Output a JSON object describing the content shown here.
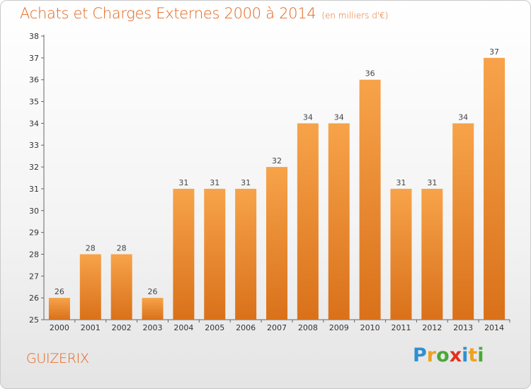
{
  "title": "Achats et Charges Externes 2000 à 2014",
  "unit": "(en milliers d'€)",
  "commune": "GUIZERIX",
  "brand": {
    "text": "Proxiti",
    "letters": [
      {
        "ch": "P",
        "color": "#2f8fd0"
      },
      {
        "ch": "r",
        "color": "#f0a020"
      },
      {
        "ch": "o",
        "color": "#4aa838"
      },
      {
        "ch": "x",
        "color": "#e2301e"
      },
      {
        "ch": "i",
        "color": "#2f8fd0"
      },
      {
        "ch": "t",
        "color": "#f0a020"
      },
      {
        "ch": "i",
        "color": "#4aa838"
      }
    ]
  },
  "colors": {
    "accent": "#e2661e",
    "bar_top": "#f7a34a",
    "bar_bottom": "#d9711a"
  },
  "chart_data": {
    "type": "bar",
    "categories": [
      "2000",
      "2001",
      "2002",
      "2003",
      "2004",
      "2005",
      "2006",
      "2007",
      "2008",
      "2009",
      "2010",
      "2011",
      "2012",
      "2013",
      "2014"
    ],
    "values": [
      26,
      28,
      28,
      26,
      31,
      31,
      31,
      32,
      34,
      34,
      36,
      31,
      31,
      34,
      37
    ],
    "title": "Achats et Charges Externes 2000 à 2014",
    "xlabel": "",
    "ylabel": "",
    "ylim": [
      25,
      38
    ],
    "yticks": [
      25,
      26,
      27,
      28,
      29,
      30,
      31,
      32,
      33,
      34,
      35,
      36,
      37,
      38
    ],
    "grid": false,
    "data_labels": true
  }
}
